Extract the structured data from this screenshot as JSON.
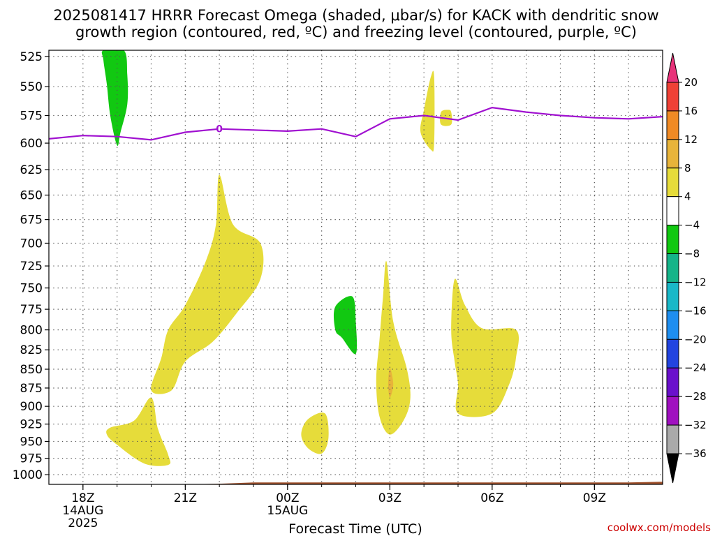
{
  "chart_data": {
    "type": "contour",
    "title_line1": "2025081417 HRRR Forecast Omega (shaded, μbar/s) for KACK with dendritic snow",
    "title_line2": "growth region (contoured, red, ºC) and freezing level (contoured, purple, ºC)",
    "xlabel": "Forecast Time (UTC)",
    "credit": "coolwx.com/models",
    "y_ticks": [
      525,
      550,
      575,
      600,
      625,
      650,
      675,
      700,
      725,
      750,
      775,
      800,
      825,
      850,
      875,
      900,
      925,
      950,
      975,
      1000
    ],
    "ylim": [
      1015,
      520
    ],
    "y_scale": "log-pressure",
    "xlim": [
      -1,
      17
    ],
    "x_ticks": [
      {
        "hour": 0,
        "label": "18Z",
        "date": "14AUG",
        "year": "2025"
      },
      {
        "hour": 3,
        "label": "21Z"
      },
      {
        "hour": 6,
        "label": "00Z",
        "date": "15AUG"
      },
      {
        "hour": 9,
        "label": "03Z"
      },
      {
        "hour": 12,
        "label": "06Z"
      },
      {
        "hour": 15,
        "label": "09Z"
      }
    ],
    "grid": true,
    "colorbar": {
      "labels": [
        "20",
        "16",
        "12",
        "8",
        "4",
        "−4",
        "−8",
        "−12",
        "−16",
        "−20",
        "−24",
        "−28",
        "−32",
        "−36"
      ],
      "colors": [
        "#e8337a",
        "#ef4136",
        "#f08a24",
        "#e8b43a",
        "#e6dc3a",
        "#ffffff",
        "#11c811",
        "#15b489",
        "#19b8c8",
        "#1e8ef0",
        "#2244e0",
        "#6a10cc",
        "#a010c0",
        "#aaaaaa"
      ]
    },
    "freezing_level": {
      "color": "#a010d0",
      "label": "0",
      "x": [
        -1,
        0,
        1,
        2,
        3,
        4,
        5,
        6,
        7,
        8,
        9,
        10,
        11,
        12,
        13,
        14,
        15,
        16,
        17
      ],
      "p": [
        596,
        593,
        594,
        597,
        590,
        587,
        588,
        589,
        587,
        594,
        578,
        575,
        579,
        568,
        572,
        575,
        577,
        578,
        576
      ]
    },
    "omega_regions": [
      {
        "category": "4",
        "color": "#e6dc3a",
        "pts": [
          [
            4.0,
            630
          ],
          [
            4.4,
            680
          ],
          [
            5.2,
            700
          ],
          [
            5.2,
            740
          ],
          [
            4.5,
            780
          ],
          [
            3.8,
            815
          ],
          [
            3.0,
            840
          ],
          [
            2.6,
            878
          ],
          [
            2.0,
            878
          ],
          [
            2.3,
            835
          ],
          [
            2.5,
            800
          ],
          [
            3.0,
            770
          ],
          [
            3.6,
            720
          ],
          [
            3.9,
            680
          ]
        ]
      },
      {
        "category": "4",
        "color": "#e6dc3a",
        "pts": [
          [
            2.0,
            888
          ],
          [
            2.2,
            932
          ],
          [
            2.5,
            970
          ],
          [
            2.5,
            985
          ],
          [
            1.8,
            983
          ],
          [
            1.0,
            955
          ],
          [
            0.7,
            940
          ],
          [
            0.8,
            930
          ],
          [
            1.5,
            920
          ]
        ]
      },
      {
        "category": "4",
        "color": "#e6dc3a",
        "pts": [
          [
            7.1,
            910
          ],
          [
            7.2,
            945
          ],
          [
            7.0,
            968
          ],
          [
            6.6,
            960
          ],
          [
            6.4,
            940
          ],
          [
            6.6,
            918
          ]
        ]
      },
      {
        "category": "4",
        "color": "#e6dc3a",
        "pts": [
          [
            8.9,
            720
          ],
          [
            9.1,
            790
          ],
          [
            9.5,
            850
          ],
          [
            9.6,
            890
          ],
          [
            9.4,
            920
          ],
          [
            9.0,
            940
          ],
          [
            8.7,
            915
          ],
          [
            8.6,
            865
          ],
          [
            8.7,
            810
          ],
          [
            8.8,
            760
          ]
        ]
      },
      {
        "category": "4",
        "color": "#e6dc3a",
        "pts": [
          [
            10.9,
            740
          ],
          [
            11.2,
            770
          ],
          [
            11.7,
            798
          ],
          [
            12.7,
            800
          ],
          [
            12.7,
            835
          ],
          [
            12.5,
            870
          ],
          [
            12.0,
            910
          ],
          [
            11.0,
            910
          ],
          [
            11.0,
            870
          ],
          [
            10.9,
            840
          ],
          [
            10.8,
            800
          ]
        ]
      },
      {
        "category": "4",
        "color": "#e6dc3a",
        "pts": [
          [
            10.7,
            570
          ],
          [
            10.8,
            572
          ],
          [
            10.8,
            583
          ],
          [
            10.5,
            583
          ],
          [
            10.5,
            572
          ]
        ]
      },
      {
        "category": "4",
        "color": "#e6dc3a",
        "pts": [
          [
            10.2,
            542
          ],
          [
            10.3,
            542
          ],
          [
            10.3,
            600
          ],
          [
            10.2,
            606
          ],
          [
            9.9,
            590
          ],
          [
            10.0,
            570
          ]
        ]
      },
      {
        "category": "8",
        "color": "#e8b43a",
        "pts": [
          [
            9.0,
            848
          ],
          [
            9.1,
            870
          ],
          [
            9.0,
            888
          ],
          [
            8.95,
            870
          ]
        ]
      },
      {
        "category": "−4",
        "color": "#11c811",
        "pts": [
          [
            1.2,
            520
          ],
          [
            1.3,
            540
          ],
          [
            1.3,
            565
          ],
          [
            1.1,
            590
          ],
          [
            1.0,
            602
          ],
          [
            0.8,
            575
          ],
          [
            0.7,
            548
          ],
          [
            0.6,
            528
          ],
          [
            0.6,
            520
          ]
        ]
      },
      {
        "category": "−4",
        "color": "#11c811",
        "pts": [
          [
            7.9,
            760
          ],
          [
            8.0,
            790
          ],
          [
            8.0,
            830
          ],
          [
            7.6,
            810
          ],
          [
            7.4,
            800
          ],
          [
            7.4,
            772
          ]
        ]
      }
    ],
    "ground": {
      "color": "#a0522d",
      "x": [
        -1,
        3,
        4,
        5,
        16,
        17
      ],
      "p": [
        1015,
        1015,
        1014,
        1012,
        1012,
        1011
      ]
    }
  }
}
